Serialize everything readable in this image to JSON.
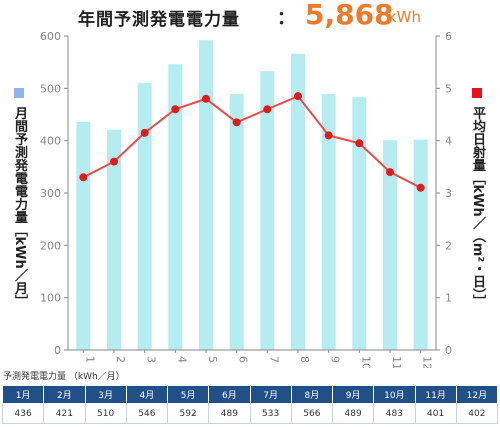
{
  "header": {
    "title": "年間予測発電電力量",
    "colon": "：",
    "total": "5,868",
    "unit": "kWh"
  },
  "axis_labels": {
    "left": "月間予測発電電力量［kWh／月］",
    "right": "平均日射量［kWh／（m²・日）］"
  },
  "table": {
    "caption": "予測発電電力量 （kWh／月）",
    "headers": [
      "1月",
      "2月",
      "3月",
      "4月",
      "5月",
      "6月",
      "7月",
      "8月",
      "9月",
      "10月",
      "11月",
      "12月"
    ],
    "values": [
      "436",
      "421",
      "510",
      "546",
      "592",
      "489",
      "533",
      "566",
      "489",
      "483",
      "401",
      "402"
    ]
  },
  "colors": {
    "bar": "#b5ecef",
    "line": "#e84a4a",
    "marker": "#e01b1b",
    "axis": "#8a8a8a",
    "total_text": "#ee7a2a",
    "table_header": "#214f87"
  },
  "chart_data": {
    "type": "bar",
    "categories": [
      "1",
      "2",
      "3",
      "4",
      "5",
      "6",
      "7",
      "8",
      "9",
      "10",
      "11",
      "12"
    ],
    "series": [
      {
        "name": "月間予測発電電力量",
        "type": "bar",
        "axis": "left",
        "values": [
          436,
          421,
          510,
          546,
          592,
          489,
          533,
          566,
          489,
          483,
          401,
          402
        ]
      },
      {
        "name": "平均日射量",
        "type": "line",
        "axis": "right",
        "values": [
          3.3,
          3.6,
          4.15,
          4.6,
          4.8,
          4.35,
          4.6,
          4.85,
          4.1,
          3.95,
          3.4,
          3.1
        ]
      }
    ],
    "ylim_left": [
      0,
      600
    ],
    "yticks_left": [
      "0",
      "100",
      "200",
      "300",
      "400",
      "500",
      "600"
    ],
    "ylim_right": [
      0,
      6
    ],
    "yticks_right": [
      "0",
      "1",
      "2",
      "3",
      "4",
      "5",
      "6"
    ],
    "grid": false
  }
}
